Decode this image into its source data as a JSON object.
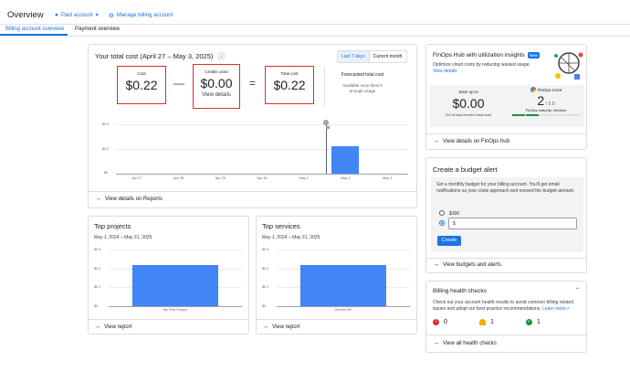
{
  "header": {
    "title": "Overview",
    "paid_account": "Paid account",
    "manage_billing": "Manage billing account"
  },
  "tabs": [
    {
      "label": "Billing account overview",
      "active": true
    },
    {
      "label": "Payment overview",
      "active": false
    }
  ],
  "total_cost": {
    "title": "Your total cost (April 27 – May 3, 2025)",
    "range_options": [
      "Last 7 days",
      "Current month"
    ],
    "cost_label": "Cost",
    "cost_value": "$0.22",
    "credits_label": "Credits used",
    "credits_value": "$0.00",
    "credits_link": "View details",
    "total_label": "Total cost",
    "total_value": "$0.22",
    "forecast_label": "Forecasted total cost",
    "forecast_note": "Available once there's enough usage",
    "footer": "View details on Reports"
  },
  "cost_chart": {
    "chart_data": {
      "type": "bar",
      "categories": [
        "Apr 27",
        "Apr 28",
        "Apr 29",
        "Apr 30",
        "May 1",
        "May 2",
        "May 3"
      ],
      "values": [
        0,
        0,
        0,
        0,
        0,
        0.22,
        0
      ],
      "y_ticks": [
        "$0.4",
        "$0.2",
        "$0"
      ],
      "ylim": [
        0,
        0.4
      ],
      "grid": true
    }
  },
  "top_projects": {
    "title": "Top projects",
    "date": "May 1, 2024 – May 31, 2025",
    "footer": "View report",
    "chart_data": {
      "type": "bar",
      "categories": [
        "My First Project"
      ],
      "values": [
        0.22
      ],
      "y_ticks": [
        "$0.3",
        "$0.2",
        "$0.1",
        "$0"
      ],
      "ylim": [
        0,
        0.3
      ],
      "grid": true
    }
  },
  "top_services": {
    "title": "Top services",
    "date": "May 1, 2024 – May 31, 2025",
    "footer": "View report",
    "chart_data": {
      "type": "bar",
      "categories": [
        "Gemini API"
      ],
      "values": [
        0.22
      ],
      "y_ticks": [
        "$0.3",
        "$0.2",
        "$0.1",
        "$0"
      ],
      "ylim": [
        0,
        0.3
      ],
      "grid": true
    }
  },
  "finops": {
    "title": "FinOps Hub with utilization insights",
    "badge": "New",
    "desc": "Optimize cloud costs by reducing wasted usage.",
    "link": "View details",
    "save_label": "Save up to",
    "save_value": "$0.00",
    "save_note": "0% of last month's total cost",
    "score_label": "FinOps score",
    "score_value": "2",
    "score_max": "/ 5.0",
    "maturity": "FinOps maturity: Medium",
    "footer": "View details on FinOps hub"
  },
  "budget": {
    "title": "Create a budget alert",
    "desc": "Set a monthly budget for your billing account. You'll get email notifications as your costs approach and exceed the budget amount.",
    "option1": "$100",
    "input_value": "$",
    "create": "Create",
    "footer": "View budgets and alerts"
  },
  "health": {
    "title": "Billing health checks",
    "desc": "Check out your account health results to avoid common billing related issues and adopt our best practice recommendations.",
    "learn_more": "Learn more",
    "errors": "0",
    "warnings": "1",
    "passed": "1",
    "footer": "View all health checks",
    "colors": {
      "error": "#d93025",
      "warning": "#f9ab00",
      "ok": "#1e8e3e"
    }
  }
}
